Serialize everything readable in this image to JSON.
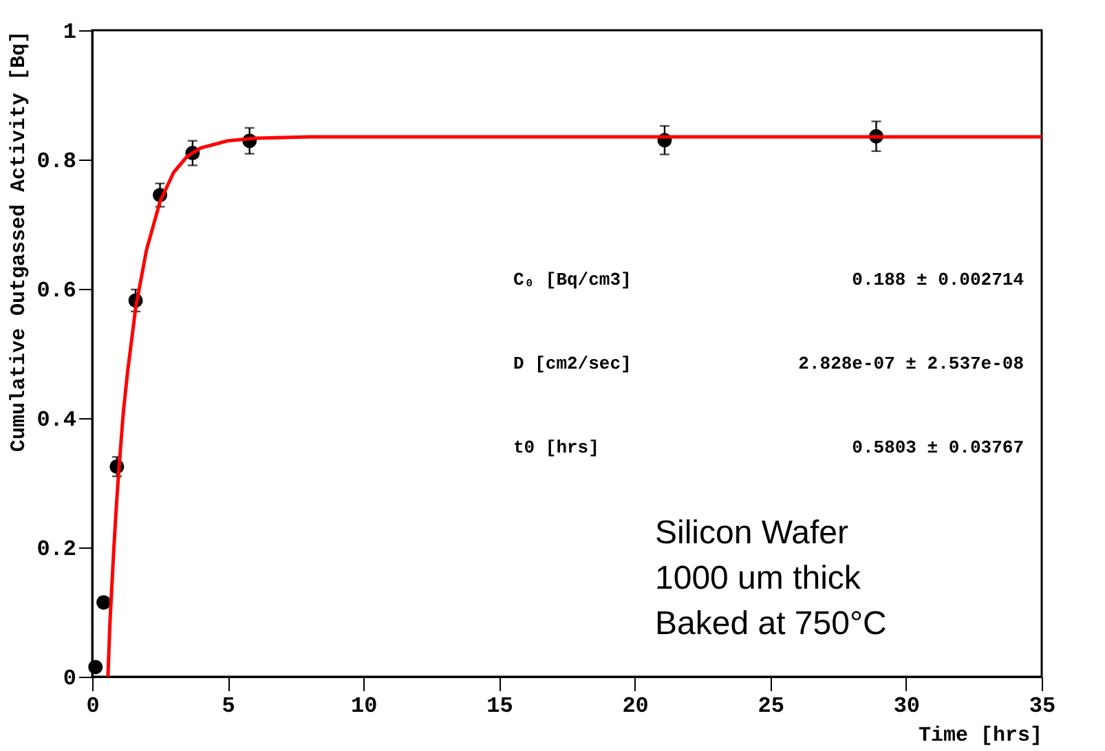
{
  "chart_data": {
    "type": "scatter",
    "xlabel": "Time [hrs]",
    "ylabel": "Cumulative Outgassed Activity [Bq]",
    "xlim": [
      0,
      35
    ],
    "xticks": [
      0,
      5,
      10,
      15,
      20,
      25,
      30,
      35
    ],
    "ylim": [
      0,
      1
    ],
    "yticks": [
      0,
      0.2,
      0.4,
      0.6,
      0.8,
      1
    ],
    "grid": false,
    "series": [
      {
        "type": "scatter",
        "color": "#000000",
        "marker": "circle",
        "x": [
          0.12,
          0.42,
          0.91,
          1.6,
          2.5,
          3.7,
          5.8,
          21.1,
          28.9
        ],
        "values": [
          0.015,
          0.115,
          0.325,
          0.582,
          0.745,
          0.81,
          0.829,
          0.83,
          0.836
        ],
        "errors": [
          0.005,
          0.008,
          0.015,
          0.017,
          0.018,
          0.019,
          0.02,
          0.022,
          0.023
        ]
      },
      {
        "type": "line",
        "color": "#ff0000",
        "marker": "none",
        "line_style": "solid",
        "x": [
          0.58,
          0.65,
          0.7,
          0.8,
          0.9,
          1.0,
          1.15,
          1.3,
          1.6,
          2.0,
          2.5,
          3.0,
          3.5,
          4.0,
          5.0,
          6.0,
          8.0,
          12.0,
          20.0,
          35.0
        ],
        "values": [
          0.0,
          0.08,
          0.12,
          0.2,
          0.27,
          0.33,
          0.41,
          0.47,
          0.57,
          0.66,
          0.735,
          0.78,
          0.805,
          0.818,
          0.829,
          0.833,
          0.835,
          0.835,
          0.835,
          0.835
        ]
      }
    ],
    "annotations": [
      "C₀ [Bq/cm3]",
      "0.188 ± 0.002714",
      "D [cm2/sec]",
      "2.828e-07 ± 2.537e-08",
      "t0 [hrs]",
      "0.5803 ± 0.03767",
      "Silicon Wafer",
      "1000 um thick",
      "Baked at 750°C"
    ]
  }
}
